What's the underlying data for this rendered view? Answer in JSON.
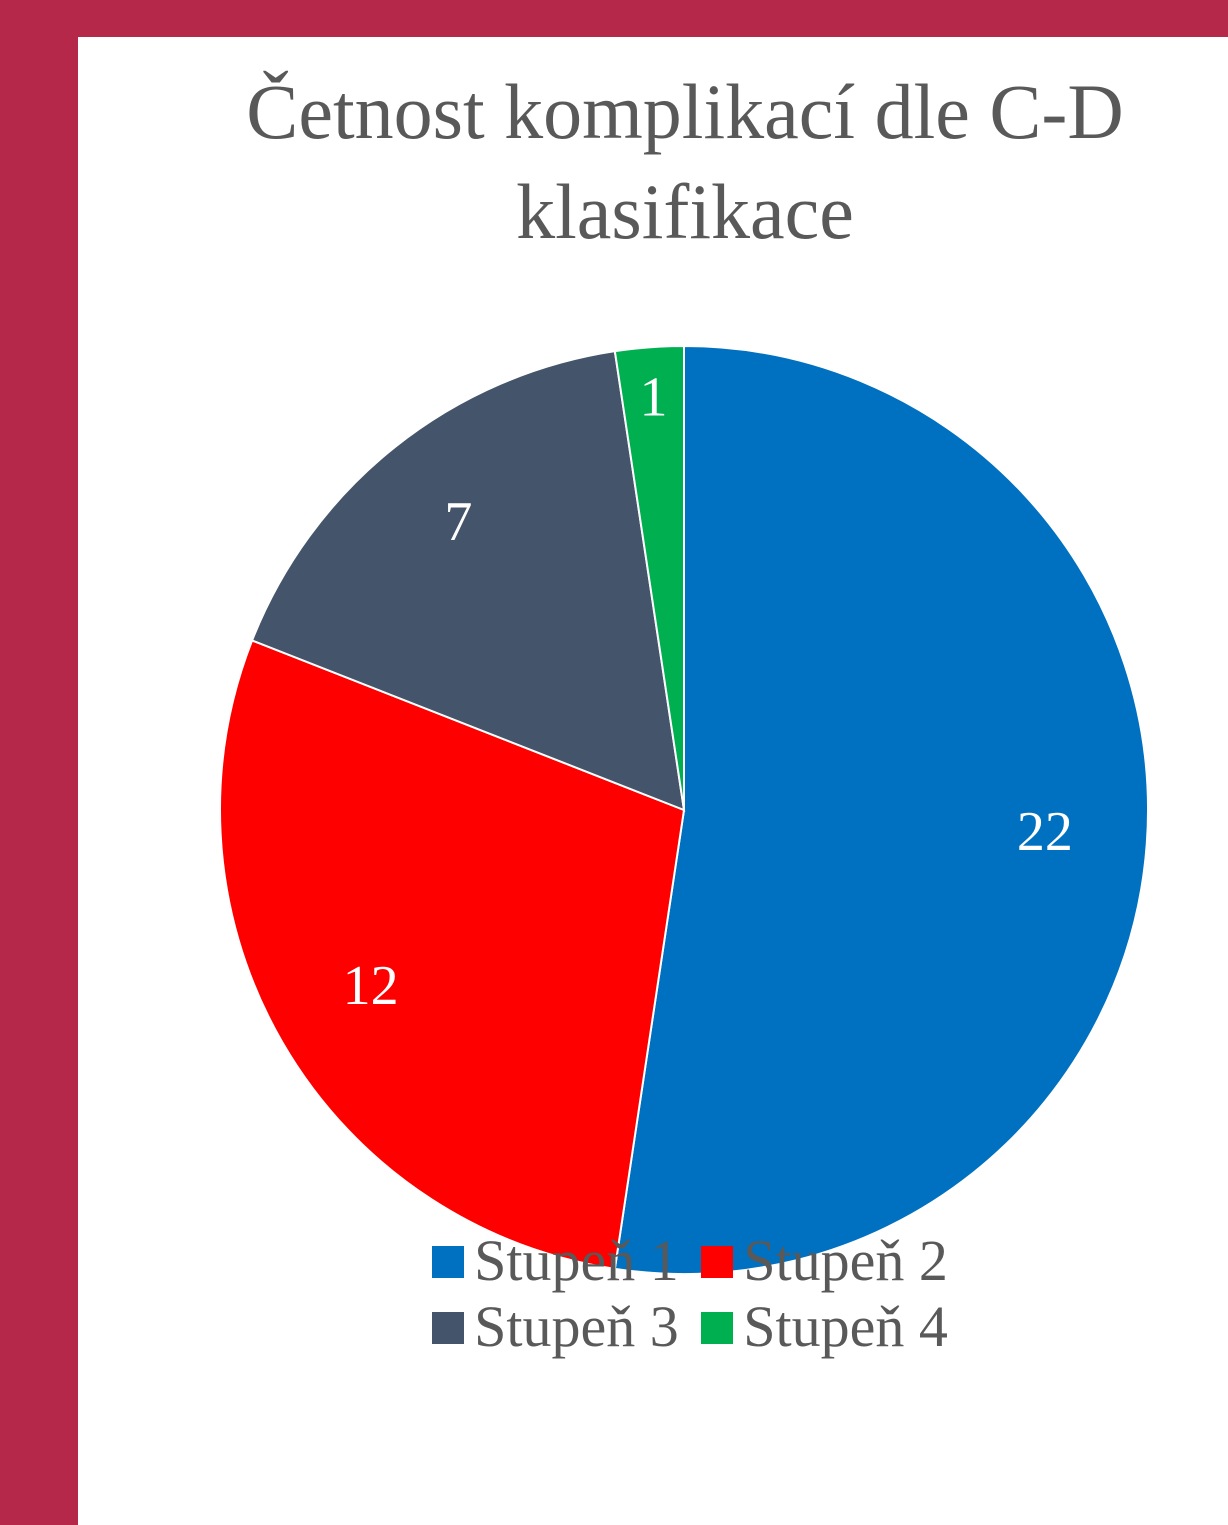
{
  "chart_data": {
    "type": "pie",
    "title": "Četnost komplikací dle C-D klasifikace",
    "categories": [
      "Stupeň 1",
      "Stupeň 2",
      "Stupeň 3",
      "Stupeň 4"
    ],
    "values": [
      22,
      12,
      7,
      1
    ],
    "colors": [
      "#0070c0",
      "#ff0000",
      "#44546a",
      "#00b050"
    ],
    "legend": "bottom"
  }
}
